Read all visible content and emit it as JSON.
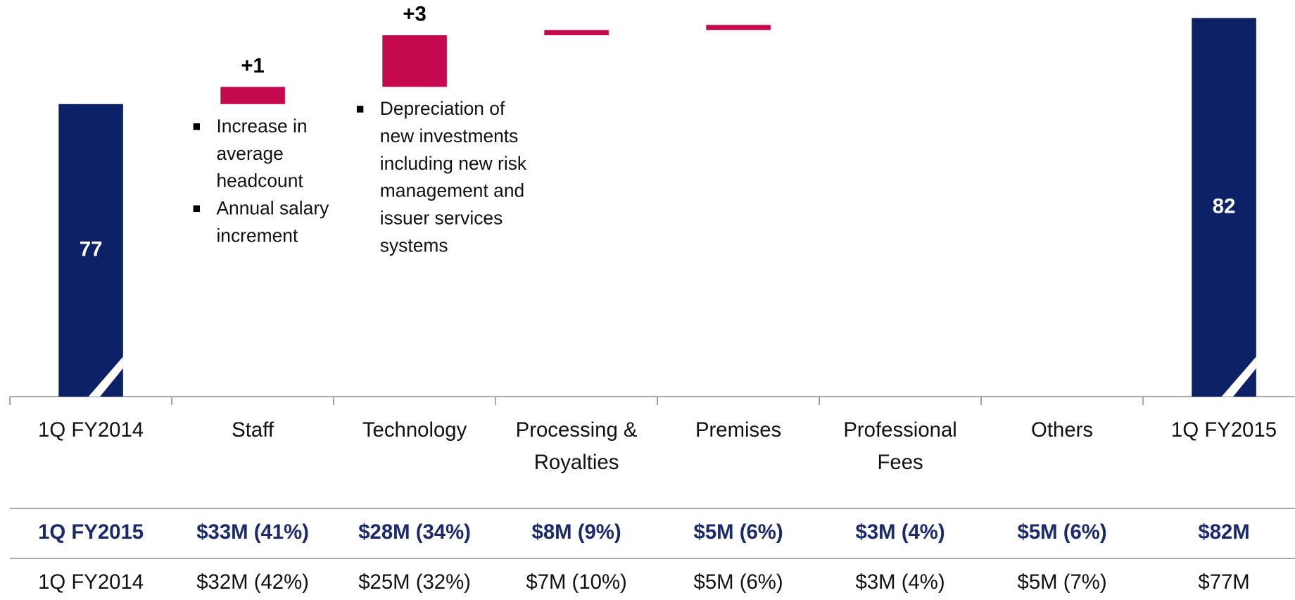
{
  "chart_data": {
    "type": "waterfall",
    "categories": [
      "1Q FY2014",
      "Staff",
      "Technology",
      "Processing & Royalties",
      "Premises",
      "Professional Fees",
      "Others",
      "1Q FY2015"
    ],
    "values": [
      77,
      1,
      3,
      0.3,
      0.3,
      0,
      0,
      82
    ],
    "value_labels": [
      "77",
      "+1",
      "+3",
      null,
      null,
      null,
      null,
      "82"
    ],
    "measure": [
      "absolute",
      "relative",
      "relative",
      "relative",
      "relative",
      "relative",
      "relative",
      "total"
    ],
    "total_color": "#0d2266",
    "increase_color": "#c4094f",
    "ylim": [
      60,
      83
    ],
    "annotations": [
      [
        [
          "Increase in",
          "average",
          "headcount"
        ],
        [
          "Annual salary",
          "increment"
        ]
      ],
      [
        [
          "Depreciation of",
          "new investments",
          "including new risk",
          "management and",
          "issuer services",
          "systems"
        ]
      ]
    ]
  },
  "table": {
    "rows": [
      [
        "1Q FY2015",
        "$33M (41%)",
        "$28M (34%)",
        "$8M (9%)",
        "$5M (6%)",
        "$3M (4%)",
        "$5M (6%)",
        "$82M"
      ],
      [
        "1Q FY2014",
        "$32M (42%)",
        "$25M (32%)",
        "$7M (10%)",
        "$5M (6%)",
        "$3M (4%)",
        "$5M (7%)",
        "$77M"
      ]
    ]
  }
}
